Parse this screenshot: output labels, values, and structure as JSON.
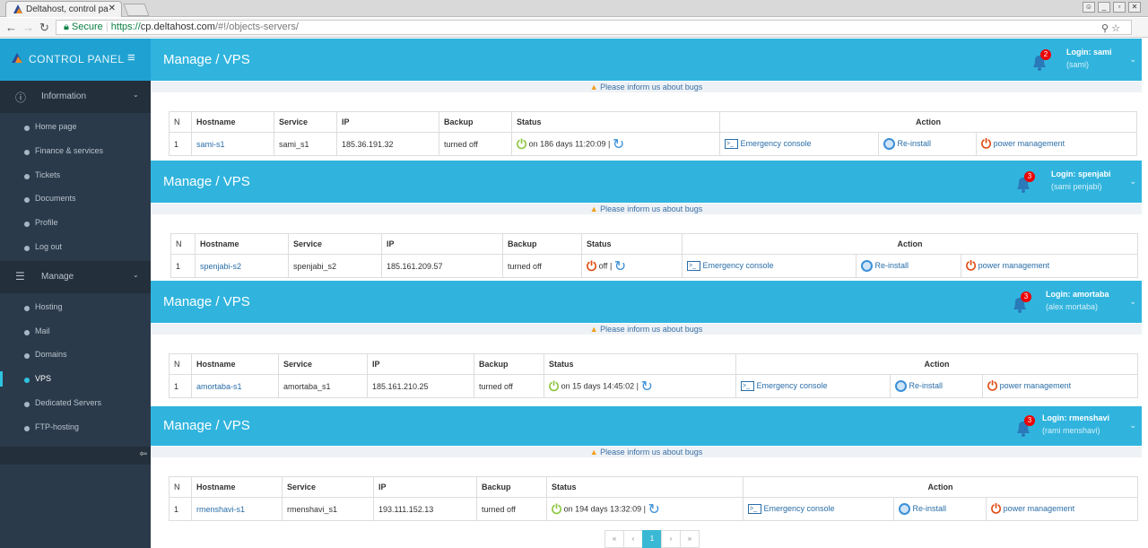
{
  "browser": {
    "tab_title": "Deltahost, control pa",
    "secure_label": "Secure",
    "url_scheme": "https://",
    "url_host": "cp.deltahost.com",
    "url_path": "/#!/objects-servers/"
  },
  "sidebar": {
    "brand": "CONTROL PANEL",
    "sections": [
      {
        "label": "Information",
        "icon": "info-icon",
        "items": [
          {
            "label": "Home page"
          },
          {
            "label": "Finance & services"
          },
          {
            "label": "Tickets"
          },
          {
            "label": "Documents"
          },
          {
            "label": "Profile"
          },
          {
            "label": "Log out"
          }
        ]
      },
      {
        "label": "Manage",
        "icon": "server-icon",
        "items": [
          {
            "label": "Hosting"
          },
          {
            "label": "Mail"
          },
          {
            "label": "Domains"
          },
          {
            "label": "VPS",
            "active": true
          },
          {
            "label": "Dedicated Servers"
          },
          {
            "label": "FTP-hosting"
          }
        ]
      }
    ]
  },
  "columns": [
    "N",
    "Hostname",
    "Service",
    "IP",
    "Backup",
    "Status",
    "Action"
  ],
  "actions": {
    "console": "Emergency console",
    "reinstall": "Re-install",
    "power": "power management"
  },
  "bug_notice": "Please inform us about bugs",
  "panels": [
    {
      "title": "Manage / VPS",
      "notifications": "2",
      "login": "Login: sami",
      "login_name": "(sami)",
      "row": {
        "n": "1",
        "hostname": "sami-s1",
        "service": "sami_s1",
        "ip": "185.36.191.32",
        "backup": "turned off",
        "status": "on 186 days 11:20:09 |",
        "power_state": "on"
      }
    },
    {
      "title": "Manage / VPS",
      "notifications": "3",
      "login": "Login: spenjabi",
      "login_name": "(sami penjabi)",
      "row": {
        "n": "1",
        "hostname": "spenjabi-s2",
        "service": "spenjabi_s2",
        "ip": "185.161.209.57",
        "backup": "turned off",
        "status": "off |",
        "power_state": "off"
      }
    },
    {
      "title": "Manage / VPS",
      "notifications": "3",
      "login": "Login: amortaba",
      "login_name": "(alex mortaba)",
      "row": {
        "n": "1",
        "hostname": "amortaba-s1",
        "service": "amortaba_s1",
        "ip": "185.161.210.25",
        "backup": "turned off",
        "status": "on 15 days 14:45:02 |",
        "power_state": "on"
      }
    },
    {
      "title": "Manage / VPS",
      "notifications": "3",
      "login": "Login: rmenshavi",
      "login_name": "(rami menshavi)",
      "row": {
        "n": "1",
        "hostname": "rmenshavi-s1",
        "service": "rmenshavi_s1",
        "ip": "193.111.152.13",
        "backup": "turned off",
        "status": "on 194 days 13:32:09 |",
        "power_state": "on"
      }
    }
  ],
  "pagination": {
    "first": "«",
    "prev": "‹",
    "current": "1",
    "next": "›",
    "last": "»"
  },
  "colors": {
    "header": "#30b4de",
    "sidebar": "#2b3a4a",
    "power_on": "#8cc63f",
    "power_off": "#e04a10",
    "badge": "#e00000"
  }
}
